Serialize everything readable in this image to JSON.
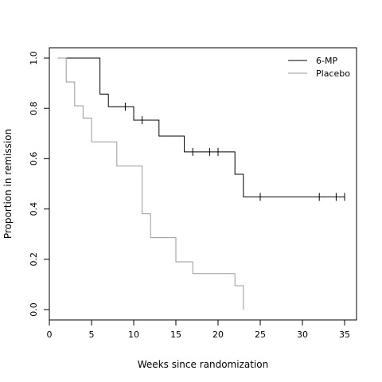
{
  "chart_data": {
    "type": "line",
    "step": true,
    "title": "",
    "xlabel": "Weeks since randomization",
    "ylabel": "Proportion in remission",
    "xlim": [
      0,
      36
    ],
    "ylim": [
      0,
      1
    ],
    "xticks": [
      0,
      5,
      10,
      15,
      20,
      25,
      30,
      35
    ],
    "yticks": [
      0.0,
      0.2,
      0.4,
      0.6,
      0.8,
      1.0
    ],
    "xtick_labels": [
      "0",
      "5",
      "10",
      "15",
      "20",
      "25",
      "30",
      "35"
    ],
    "ytick_labels": [
      "0.0",
      "0.2",
      "0.4",
      "0.6",
      "0.8",
      "1.0"
    ],
    "grid": false,
    "legend_position": "top-right",
    "series": [
      {
        "name": "6-MP",
        "color": "#000000",
        "x": [
          1,
          6,
          7,
          10,
          13,
          16,
          22,
          23,
          35
        ],
        "y": [
          1.0,
          0.857,
          0.807,
          0.753,
          0.69,
          0.627,
          0.538,
          0.448,
          0.448
        ],
        "censored_x": [
          9,
          11,
          17,
          19,
          20,
          25,
          32,
          34,
          35
        ]
      },
      {
        "name": "Placebo",
        "color": "#999999",
        "x": [
          1,
          2,
          3,
          4,
          5,
          8,
          11,
          12,
          15,
          17,
          22,
          23
        ],
        "y": [
          1.0,
          0.905,
          0.81,
          0.762,
          0.667,
          0.571,
          0.381,
          0.286,
          0.19,
          0.143,
          0.095,
          0.048
        ],
        "end_y": 0.0,
        "censored_x": []
      }
    ]
  }
}
